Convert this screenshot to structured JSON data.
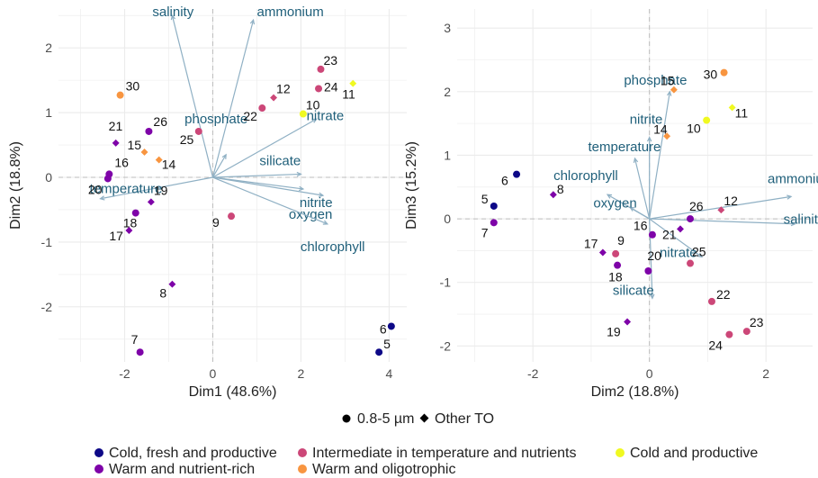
{
  "colors": {
    "cold_fresh": "#0d0887",
    "intermediate": "#cc4778",
    "cold_productive": "#f0f921",
    "warm_nutrient": "#7e03a8",
    "warm_oligo": "#f89540",
    "arrow": "#8fb0c4",
    "arrow_label": "#1f5f7a",
    "grid": "#ebebeb",
    "zero_line": "#bdbdbd"
  },
  "legend": {
    "shape_entries": [
      {
        "label": "0.8-5 µm",
        "shape": "circle"
      },
      {
        "label": "Other TO",
        "shape": "diamond"
      }
    ],
    "color_entries": [
      {
        "label": "Cold, fresh and productive",
        "group": "cold_fresh"
      },
      {
        "label": "Intermediate in temperature and nutrients",
        "group": "intermediate"
      },
      {
        "label": "Cold and productive",
        "group": "cold_productive"
      },
      {
        "label": "Warm and nutrient-rich",
        "group": "warm_nutrient"
      },
      {
        "label": "Warm and oligotrophic",
        "group": "warm_oligo"
      }
    ]
  },
  "chart_data": [
    {
      "type": "scatter",
      "xlabel": "Dim1 (48.6%)",
      "ylabel": "Dim2 (18.8%)",
      "xlim": [
        -3.5,
        4.4
      ],
      "ylim": [
        -2.85,
        2.6
      ],
      "xticks": [
        -2,
        0,
        2,
        4
      ],
      "yticks": [
        -2,
        -1,
        0,
        1,
        2
      ],
      "points": [
        {
          "label": "30",
          "x": -2.1,
          "y": 1.27,
          "group": "warm_oligo",
          "shape": "circle"
        },
        {
          "label": "21",
          "x": -2.2,
          "y": 0.53,
          "group": "warm_nutrient",
          "shape": "diamond"
        },
        {
          "label": "26",
          "x": -1.45,
          "y": 0.71,
          "group": "warm_nutrient",
          "shape": "circle"
        },
        {
          "label": "15",
          "x": -1.55,
          "y": 0.39,
          "group": "warm_oligo",
          "shape": "diamond"
        },
        {
          "label": "14",
          "x": -1.22,
          "y": 0.27,
          "group": "warm_oligo",
          "shape": "diamond"
        },
        {
          "label": "16",
          "x": -2.35,
          "y": 0.05,
          "group": "warm_nutrient",
          "shape": "circle"
        },
        {
          "label": "20",
          "x": -2.38,
          "y": -0.02,
          "group": "warm_nutrient",
          "shape": "circle"
        },
        {
          "label": "19",
          "x": -1.4,
          "y": -0.38,
          "group": "warm_nutrient",
          "shape": "diamond"
        },
        {
          "label": "18",
          "x": -1.75,
          "y": -0.55,
          "group": "warm_nutrient",
          "shape": "circle"
        },
        {
          "label": "17",
          "x": -1.9,
          "y": -0.82,
          "group": "warm_nutrient",
          "shape": "diamond"
        },
        {
          "label": "8",
          "x": -0.92,
          "y": -1.65,
          "group": "warm_nutrient",
          "shape": "diamond"
        },
        {
          "label": "7",
          "x": -1.65,
          "y": -2.7,
          "group": "warm_nutrient",
          "shape": "circle"
        },
        {
          "label": "25",
          "x": -0.32,
          "y": 0.71,
          "group": "intermediate",
          "shape": "circle"
        },
        {
          "label": "9",
          "x": 0.42,
          "y": -0.6,
          "group": "intermediate",
          "shape": "circle"
        },
        {
          "label": "22",
          "x": 1.12,
          "y": 1.07,
          "group": "intermediate",
          "shape": "circle"
        },
        {
          "label": "12",
          "x": 1.38,
          "y": 1.23,
          "group": "intermediate",
          "shape": "diamond"
        },
        {
          "label": "23",
          "x": 2.45,
          "y": 1.67,
          "group": "intermediate",
          "shape": "circle"
        },
        {
          "label": "24",
          "x": 2.4,
          "y": 1.37,
          "group": "intermediate",
          "shape": "circle"
        },
        {
          "label": "10",
          "x": 2.05,
          "y": 0.98,
          "group": "cold_productive",
          "shape": "circle"
        },
        {
          "label": "11",
          "x": 3.18,
          "y": 1.45,
          "group": "cold_productive",
          "shape": "diamond"
        },
        {
          "label": "6",
          "x": 4.05,
          "y": -2.3,
          "group": "cold_fresh",
          "shape": "circle"
        },
        {
          "label": "5",
          "x": 3.77,
          "y": -2.7,
          "group": "cold_fresh",
          "shape": "circle"
        }
      ],
      "vectors": [
        {
          "label": "salinity",
          "x": -0.92,
          "y": 2.5
        },
        {
          "label": "ammonium",
          "x": 0.92,
          "y": 2.43
        },
        {
          "label": "nitrate",
          "x": 2.35,
          "y": 0.9
        },
        {
          "label": "phosphate",
          "x": 0.3,
          "y": 0.35
        },
        {
          "label": "silicate",
          "x": 2.0,
          "y": 0.05
        },
        {
          "label": "nitrite",
          "x": 2.05,
          "y": -0.18
        },
        {
          "label": "oxygen",
          "x": 2.5,
          "y": -0.28
        },
        {
          "label": "chlorophyll",
          "x": 2.6,
          "y": -0.72
        },
        {
          "label": "temperature",
          "x": -2.55,
          "y": -0.33
        }
      ]
    },
    {
      "type": "scatter",
      "xlabel": "Dim2 (18.8%)",
      "ylabel": "Dim3 (15.2%)",
      "xlim": [
        -3.3,
        2.8
      ],
      "ylim": [
        -2.25,
        3.3
      ],
      "xticks": [
        -2,
        0,
        2
      ],
      "yticks": [
        -2,
        -1,
        0,
        1,
        2,
        3
      ],
      "points": [
        {
          "label": "15",
          "x": 0.42,
          "y": 2.03,
          "group": "warm_oligo",
          "shape": "diamond"
        },
        {
          "label": "30",
          "x": 1.28,
          "y": 2.3,
          "group": "warm_oligo",
          "shape": "circle"
        },
        {
          "label": "14",
          "x": 0.3,
          "y": 1.3,
          "group": "warm_oligo",
          "shape": "diamond"
        },
        {
          "label": "10",
          "x": 0.98,
          "y": 1.55,
          "group": "cold_productive",
          "shape": "circle"
        },
        {
          "label": "11",
          "x": 1.42,
          "y": 1.75,
          "group": "cold_productive",
          "shape": "diamond"
        },
        {
          "label": "6",
          "x": -2.28,
          "y": 0.7,
          "group": "cold_fresh",
          "shape": "circle"
        },
        {
          "label": "5",
          "x": -2.67,
          "y": 0.2,
          "group": "cold_fresh",
          "shape": "circle"
        },
        {
          "label": "7",
          "x": -2.67,
          "y": -0.06,
          "group": "warm_nutrient",
          "shape": "circle"
        },
        {
          "label": "8",
          "x": -1.65,
          "y": 0.38,
          "group": "warm_nutrient",
          "shape": "diamond"
        },
        {
          "label": "26",
          "x": 0.7,
          "y": 0.0,
          "group": "warm_nutrient",
          "shape": "circle"
        },
        {
          "label": "12",
          "x": 1.23,
          "y": 0.14,
          "group": "intermediate",
          "shape": "diamond"
        },
        {
          "label": "16",
          "x": 0.05,
          "y": -0.25,
          "group": "warm_nutrient",
          "shape": "circle"
        },
        {
          "label": "21",
          "x": 0.53,
          "y": -0.16,
          "group": "warm_nutrient",
          "shape": "diamond"
        },
        {
          "label": "25",
          "x": 0.7,
          "y": -0.7,
          "group": "intermediate",
          "shape": "circle"
        },
        {
          "label": "17",
          "x": -0.8,
          "y": -0.53,
          "group": "warm_nutrient",
          "shape": "diamond"
        },
        {
          "label": "9",
          "x": -0.58,
          "y": -0.55,
          "group": "intermediate",
          "shape": "circle"
        },
        {
          "label": "18",
          "x": -0.55,
          "y": -0.73,
          "group": "warm_nutrient",
          "shape": "circle"
        },
        {
          "label": "20",
          "x": -0.02,
          "y": -0.82,
          "group": "warm_nutrient",
          "shape": "circle"
        },
        {
          "label": "22",
          "x": 1.07,
          "y": -1.3,
          "group": "intermediate",
          "shape": "circle"
        },
        {
          "label": "19",
          "x": -0.38,
          "y": -1.62,
          "group": "warm_nutrient",
          "shape": "diamond"
        },
        {
          "label": "23",
          "x": 1.67,
          "y": -1.77,
          "group": "intermediate",
          "shape": "circle"
        },
        {
          "label": "24",
          "x": 1.37,
          "y": -1.82,
          "group": "intermediate",
          "shape": "circle"
        }
      ],
      "vectors": [
        {
          "label": "phosphate",
          "x": 0.35,
          "y": 2.0
        },
        {
          "label": "nitrite",
          "x": 0.0,
          "y": 1.28
        },
        {
          "label": "temperature",
          "x": -0.25,
          "y": 0.95
        },
        {
          "label": "chlorophyll",
          "x": -0.72,
          "y": 0.38
        },
        {
          "label": "oxygen",
          "x": -0.33,
          "y": 0.18
        },
        {
          "label": "ammonium",
          "x": 2.43,
          "y": 0.35
        },
        {
          "label": "salinity",
          "x": 2.5,
          "y": -0.08
        },
        {
          "label": "nitrate",
          "x": 0.9,
          "y": -0.6
        },
        {
          "label": "silicate",
          "x": 0.05,
          "y": -1.25
        }
      ]
    }
  ]
}
